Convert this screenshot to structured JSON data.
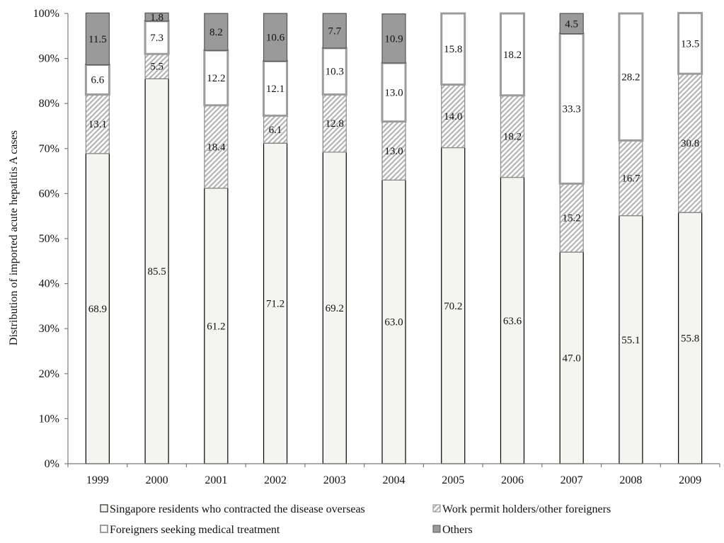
{
  "chart_data": {
    "type": "bar",
    "stacked": true,
    "percent": true,
    "title": "",
    "xlabel": "",
    "ylabel": "Distribution of imported acute hepatitis A cases",
    "ylim": [
      0,
      100
    ],
    "yticks": [
      "0%",
      "10%",
      "20%",
      "30%",
      "40%",
      "50%",
      "60%",
      "70%",
      "80%",
      "90%",
      "100%"
    ],
    "grid": false,
    "legend_position": "bottom",
    "categories": [
      "1999",
      "2000",
      "2001",
      "2002",
      "2003",
      "2004",
      "2005",
      "2006",
      "2007",
      "2008",
      "2009"
    ],
    "series": [
      {
        "name": "Singapore residents who contracted the disease overseas",
        "fill": "#f4f5f1",
        "stroke": "#000000",
        "pattern": "none",
        "values": [
          68.9,
          85.5,
          61.2,
          71.2,
          69.2,
          63.0,
          70.2,
          63.6,
          47.0,
          55.1,
          55.8
        ]
      },
      {
        "name": "Work permit holders/other foreigners",
        "fill": "#d8d8d8",
        "stroke": "#8a8a8a",
        "pattern": "hatch",
        "values": [
          13.1,
          5.5,
          18.4,
          6.1,
          12.8,
          13.0,
          14.0,
          18.2,
          15.2,
          16.7,
          30.8
        ]
      },
      {
        "name": "Foreigners seeking medical treatment",
        "fill": "#ffffff",
        "stroke": "#9c9c9c",
        "pattern": "none",
        "values": [
          6.6,
          7.3,
          12.2,
          12.1,
          10.3,
          13.0,
          15.8,
          18.2,
          33.3,
          28.2,
          13.5
        ]
      },
      {
        "name": "Others",
        "fill": "#9a9a9a",
        "stroke": "#555555",
        "pattern": "none",
        "values": [
          11.5,
          1.8,
          8.2,
          10.6,
          7.7,
          10.9,
          0,
          0,
          4.5,
          0,
          0
        ]
      }
    ],
    "data_labels": [
      [
        "68.9",
        "85.5",
        "61.2",
        "71.2",
        "69.2",
        "63.0",
        "70.2",
        "63.6",
        "47.0",
        "55.1",
        "55.8"
      ],
      [
        "13.1",
        "5.5",
        "18.4",
        "6.1",
        "12.8",
        "13.0",
        "14.0",
        "18.2",
        "15.2",
        "16.7",
        "30.8"
      ],
      [
        "6.6",
        "7.3",
        "12.2",
        "12.1",
        "10.3",
        "13.0",
        "15.8",
        "18.2",
        "33.3",
        "28.2",
        "13.5"
      ],
      [
        "11.5",
        "1.8",
        "8.2",
        "10.6",
        "7.7",
        "10.9",
        "",
        "",
        "4.5",
        "",
        ""
      ]
    ]
  }
}
